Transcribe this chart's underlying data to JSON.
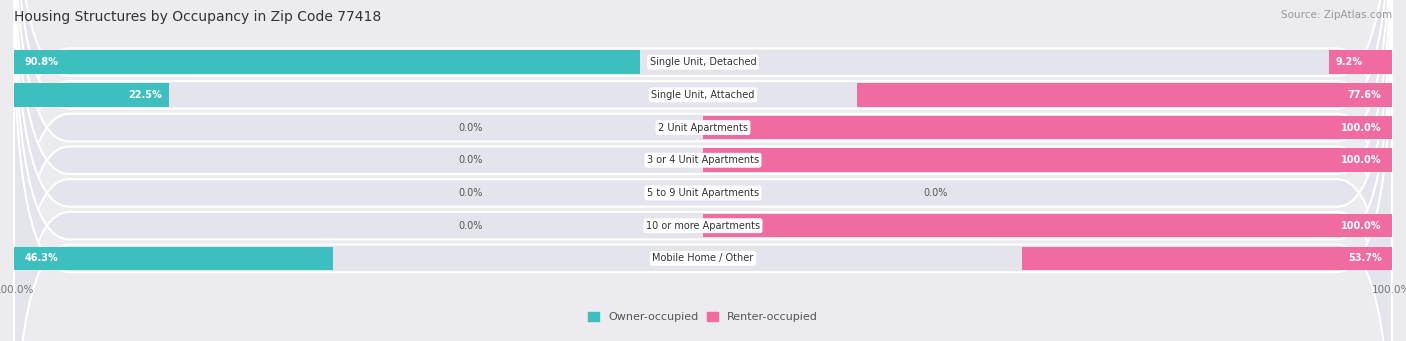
{
  "title": "Housing Structures by Occupancy in Zip Code 77418",
  "source": "Source: ZipAtlas.com",
  "categories": [
    "Single Unit, Detached",
    "Single Unit, Attached",
    "2 Unit Apartments",
    "3 or 4 Unit Apartments",
    "5 to 9 Unit Apartments",
    "10 or more Apartments",
    "Mobile Home / Other"
  ],
  "owner_pct": [
    90.8,
    22.5,
    0.0,
    0.0,
    0.0,
    0.0,
    46.3
  ],
  "renter_pct": [
    9.2,
    77.6,
    100.0,
    100.0,
    0.0,
    100.0,
    53.7
  ],
  "owner_color": "#3DBFBF",
  "renter_color": "#F06BA0",
  "renter_color_light": "#F8A8C8",
  "bg_color": "#EBEBF0",
  "bar_bg_color": "#DDDDE8",
  "row_bg_color": "#E4E4EC",
  "title_color": "#333333",
  "source_color": "#999999",
  "label_dark": "#555555",
  "label_white": "#FFFFFF",
  "fig_width": 14.06,
  "fig_height": 3.41,
  "owner_pct_labels": [
    "90.8%",
    "22.5%",
    "0.0%",
    "0.0%",
    "0.0%",
    "0.0%",
    "46.3%"
  ],
  "renter_pct_labels": [
    "9.2%",
    "77.6%",
    "100.0%",
    "100.0%",
    "0.0%",
    "100.0%",
    "53.7%"
  ]
}
